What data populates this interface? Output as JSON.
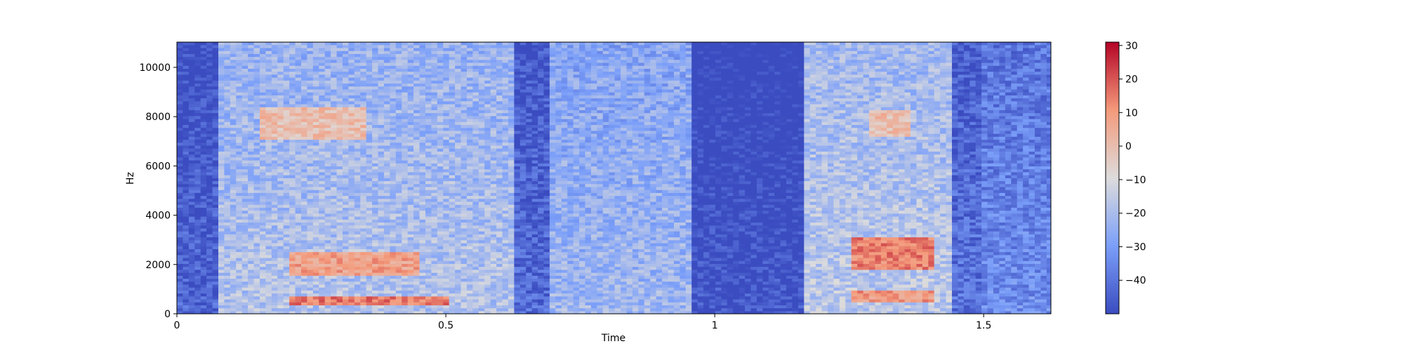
{
  "chart_data": {
    "type": "heatmap",
    "title": "",
    "xlabel": "Time",
    "ylabel": "Hz",
    "xlim": [
      0,
      1.625
    ],
    "ylim": [
      0,
      11025
    ],
    "x_ticks": [
      0,
      0.5,
      1,
      1.5
    ],
    "x_tick_labels": [
      "0",
      "0.5",
      "1",
      "1.5"
    ],
    "y_ticks": [
      0,
      2000,
      4000,
      6000,
      8000,
      10000
    ],
    "y_tick_labels": [
      "0",
      "2000",
      "4000",
      "6000",
      "8000",
      "10000"
    ],
    "colormap": "coolwarm",
    "colorbar": {
      "range": [
        -50,
        31
      ],
      "ticks": [
        30,
        20,
        10,
        0,
        -10,
        -20,
        -30,
        -40
      ],
      "tick_labels": [
        "30",
        "20",
        "10",
        "0",
        "−10",
        "−20",
        "−30",
        "−40"
      ]
    },
    "time_segments": [
      {
        "start": 0.0,
        "end": 0.07,
        "level": -44
      },
      {
        "start": 0.07,
        "end": 0.62,
        "level": -18
      },
      {
        "start": 0.62,
        "end": 0.69,
        "level": -42
      },
      {
        "start": 0.69,
        "end": 0.95,
        "level": -22
      },
      {
        "start": 0.95,
        "end": 1.16,
        "level": -48
      },
      {
        "start": 1.16,
        "end": 1.44,
        "level": -16
      },
      {
        "start": 1.44,
        "end": 1.49,
        "level": -40
      },
      {
        "start": 1.49,
        "end": 1.625,
        "level": -34
      }
    ],
    "hotspots": [
      {
        "time": [
          0.2,
          0.45
        ],
        "freq": [
          1500,
          2500
        ],
        "level": 8
      },
      {
        "time": [
          0.15,
          0.35
        ],
        "freq": [
          7000,
          8300
        ],
        "level": 0
      },
      {
        "time": [
          0.2,
          0.5
        ],
        "freq": [
          300,
          700
        ],
        "level": 15
      },
      {
        "time": [
          1.25,
          1.4
        ],
        "freq": [
          1800,
          3000
        ],
        "level": 14
      },
      {
        "time": [
          1.25,
          1.4
        ],
        "freq": [
          400,
          900
        ],
        "level": 10
      },
      {
        "time": [
          1.28,
          1.36
        ],
        "freq": [
          7200,
          8200
        ],
        "level": 0
      }
    ],
    "grid": false,
    "legend": "none"
  }
}
